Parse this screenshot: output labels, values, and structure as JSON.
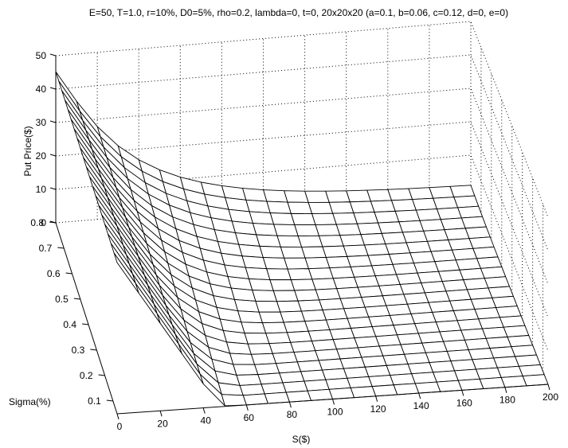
{
  "chart_data": {
    "type": "surface",
    "title": "E=50, T=1.0, r=10%, D0=5%, rho=0.2, lambda=0, t=0, 20x20x20 (a=0.1, b=0.06, c=0.12, d=0, e=0)",
    "xlabel": "S($)",
    "ylabel": "Sigma(%)",
    "zlabel": "Put Price($)",
    "x_ticks": [
      "0",
      "20",
      "40",
      "60",
      "80",
      "100",
      "120",
      "140",
      "160",
      "180",
      "200"
    ],
    "y_ticks": [
      "0.1",
      "0.2",
      "0.3",
      "0.4",
      "0.5",
      "0.6",
      "0.7",
      "0.8"
    ],
    "z_ticks": [
      "0",
      "10",
      "20",
      "30",
      "40",
      "50"
    ],
    "xlim": [
      0,
      200
    ],
    "ylim": [
      0.05,
      0.8
    ],
    "zlim": [
      0,
      50
    ],
    "grid": true,
    "strike": 50,
    "rate": 0.1,
    "dividend_yield": 0.05,
    "maturity": 1.0,
    "S_grid": [
      0,
      10,
      20,
      30,
      40,
      50,
      60,
      70,
      80,
      90,
      100,
      110,
      120,
      130,
      140,
      150,
      160,
      170,
      180,
      190,
      200
    ],
    "sigma_grid": [
      0.05,
      0.0875,
      0.125,
      0.1625,
      0.2,
      0.2375,
      0.275,
      0.3125,
      0.35,
      0.3875,
      0.425,
      0.4625,
      0.5,
      0.5375,
      0.575,
      0.6125,
      0.65,
      0.6875,
      0.725,
      0.7625,
      0.8
    ],
    "surface_description_note": ""
  }
}
